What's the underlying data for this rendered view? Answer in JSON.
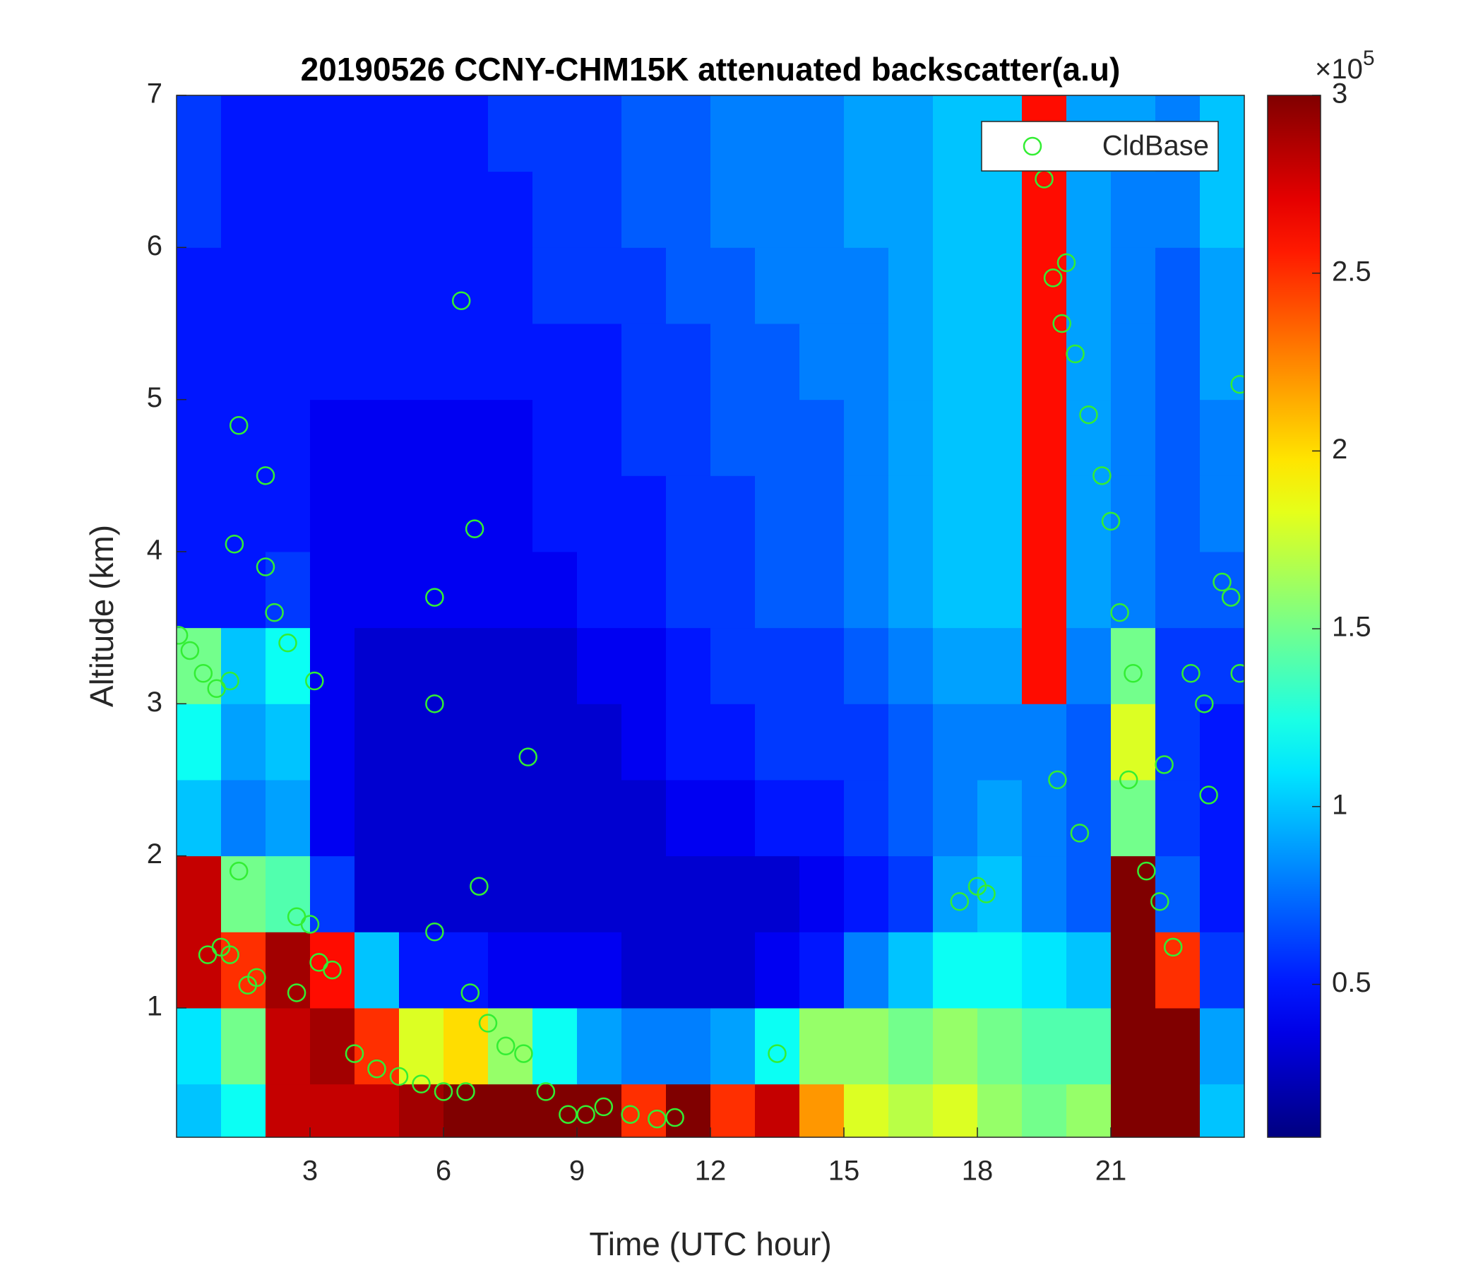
{
  "chart_data": {
    "type": "heatmap",
    "title": "20190526 CCNY-CHM15K attenuated backscatter(a.u)",
    "xlabel": "Time (UTC hour)",
    "ylabel": "Altitude (km)",
    "xlim": [
      0,
      24
    ],
    "xticks": [
      3,
      6,
      9,
      12,
      15,
      18,
      21
    ],
    "ylim": [
      0.15,
      7
    ],
    "yticks": [
      1,
      2,
      3,
      4,
      5,
      6,
      7
    ],
    "colormap": "jet",
    "clim": [
      0.07,
      3
    ],
    "cticks": [
      0.5,
      1,
      1.5,
      2,
      2.5,
      3
    ],
    "cscale_base": "×10",
    "cscale_exponent": "5",
    "x_edges": [
      0,
      1,
      2,
      3,
      4,
      5,
      6,
      7,
      8,
      9,
      10,
      11,
      12,
      13,
      14,
      15,
      16,
      17,
      18,
      19,
      20,
      21,
      22,
      23,
      24
    ],
    "y_edges": [
      0.15,
      0.5,
      1,
      1.5,
      2,
      2.5,
      3,
      3.5,
      4,
      4.5,
      5,
      5.5,
      6,
      6.5,
      7
    ],
    "z": [
      [
        1.0,
        1.2,
        2.8,
        2.8,
        2.8,
        2.9,
        3,
        3,
        3,
        3,
        2.5,
        3,
        2.5,
        2.8,
        2.2,
        1.8,
        1.7,
        1.8,
        1.6,
        1.5,
        1.6,
        3,
        3,
        1.0
      ],
      [
        1.1,
        1.5,
        2.8,
        2.9,
        2.5,
        1.8,
        2.0,
        1.6,
        1.2,
        0.9,
        0.8,
        0.8,
        0.9,
        1.2,
        1.6,
        1.6,
        1.5,
        1.6,
        1.5,
        1.4,
        1.4,
        3,
        3,
        0.9
      ],
      [
        2.8,
        2.5,
        2.9,
        2.6,
        1.0,
        0.5,
        0.5,
        0.4,
        0.4,
        0.4,
        0.3,
        0.3,
        0.3,
        0.4,
        0.5,
        0.8,
        1.0,
        1.2,
        1.2,
        1.1,
        1.0,
        3,
        2.5,
        0.6
      ],
      [
        2.8,
        1.5,
        1.4,
        0.6,
        0.3,
        0.3,
        0.3,
        0.3,
        0.3,
        0.3,
        0.3,
        0.3,
        0.3,
        0.3,
        0.4,
        0.5,
        0.6,
        0.9,
        1.0,
        0.8,
        0.7,
        3,
        0.7,
        0.5
      ],
      [
        1.0,
        0.8,
        0.9,
        0.4,
        0.3,
        0.3,
        0.3,
        0.3,
        0.3,
        0.3,
        0.3,
        0.4,
        0.4,
        0.5,
        0.5,
        0.6,
        0.7,
        0.8,
        0.9,
        0.8,
        0.7,
        1.5,
        0.6,
        0.5
      ],
      [
        1.2,
        0.9,
        1.0,
        0.4,
        0.3,
        0.3,
        0.3,
        0.3,
        0.3,
        0.3,
        0.4,
        0.5,
        0.5,
        0.6,
        0.6,
        0.6,
        0.7,
        0.8,
        0.8,
        0.8,
        0.7,
        1.8,
        0.6,
        0.5
      ],
      [
        1.5,
        1.0,
        1.2,
        0.4,
        0.3,
        0.3,
        0.3,
        0.3,
        0.3,
        0.4,
        0.4,
        0.5,
        0.6,
        0.6,
        0.6,
        0.7,
        0.8,
        0.9,
        0.9,
        2.6,
        0.8,
        1.5,
        0.6,
        0.6
      ],
      [
        0.5,
        0.5,
        0.6,
        0.4,
        0.4,
        0.4,
        0.4,
        0.4,
        0.4,
        0.5,
        0.5,
        0.6,
        0.6,
        0.7,
        0.7,
        0.8,
        0.9,
        1.0,
        1.0,
        2.6,
        0.9,
        0.8,
        0.7,
        0.7
      ],
      [
        0.5,
        0.5,
        0.5,
        0.4,
        0.4,
        0.4,
        0.4,
        0.4,
        0.5,
        0.5,
        0.5,
        0.6,
        0.6,
        0.7,
        0.7,
        0.8,
        0.9,
        1.0,
        1.0,
        2.6,
        0.9,
        0.8,
        0.7,
        0.8
      ],
      [
        0.5,
        0.5,
        0.5,
        0.4,
        0.4,
        0.4,
        0.4,
        0.4,
        0.5,
        0.5,
        0.6,
        0.6,
        0.7,
        0.7,
        0.7,
        0.8,
        0.9,
        1.0,
        1.0,
        2.6,
        0.9,
        0.8,
        0.7,
        0.8
      ],
      [
        0.5,
        0.5,
        0.5,
        0.5,
        0.5,
        0.5,
        0.5,
        0.5,
        0.5,
        0.5,
        0.6,
        0.6,
        0.7,
        0.7,
        0.8,
        0.8,
        0.9,
        1.0,
        1.0,
        2.6,
        0.9,
        0.8,
        0.7,
        0.9
      ],
      [
        0.5,
        0.5,
        0.5,
        0.5,
        0.5,
        0.5,
        0.5,
        0.5,
        0.6,
        0.6,
        0.6,
        0.7,
        0.7,
        0.8,
        0.8,
        0.8,
        0.9,
        1.0,
        1.0,
        2.6,
        0.9,
        0.8,
        0.7,
        0.9
      ],
      [
        0.6,
        0.5,
        0.5,
        0.5,
        0.5,
        0.5,
        0.5,
        0.5,
        0.6,
        0.6,
        0.7,
        0.7,
        0.8,
        0.8,
        0.8,
        0.9,
        0.9,
        1.0,
        1.0,
        2.6,
        0.9,
        0.8,
        0.8,
        1.0
      ],
      [
        0.6,
        0.5,
        0.5,
        0.5,
        0.5,
        0.5,
        0.5,
        0.6,
        0.6,
        0.6,
        0.7,
        0.7,
        0.8,
        0.8,
        0.8,
        0.9,
        0.9,
        1.0,
        1.0,
        2.6,
        0.9,
        0.9,
        0.8,
        1.0
      ]
    ],
    "legend": "upper right",
    "series": [
      {
        "name": "CldBase",
        "color": "#33ee33",
        "x": [
          0.05,
          0.3,
          0.6,
          0.9,
          1.2,
          0.7,
          1.0,
          1.2,
          1.4,
          1.6,
          1.8,
          1.4,
          1.3,
          2.0,
          2.0,
          2.2,
          2.5,
          2.7,
          3.0,
          2.7,
          3.1,
          3.2,
          3.5,
          4.0,
          4.5,
          5.0,
          5.5,
          6.0,
          6.5,
          5.8,
          5.8,
          5.8,
          6.4,
          6.7,
          6.8,
          6.6,
          7.0,
          7.4,
          7.8,
          7.9,
          8.3,
          8.8,
          9.2,
          9.6,
          10.2,
          10.8,
          11.2,
          13.5,
          17.6,
          18.0,
          18.2,
          19.5,
          19.7,
          19.9,
          20.0,
          20.2,
          20.5,
          20.8,
          21.0,
          21.2,
          21.5,
          21.4,
          21.8,
          22.1,
          22.2,
          22.4,
          22.8,
          23.1,
          23.2,
          23.5,
          23.7,
          23.9,
          23.9,
          19.8,
          20.3
        ],
        "values": [
          3.45,
          3.35,
          3.2,
          3.1,
          3.15,
          1.35,
          1.4,
          1.35,
          1.9,
          1.15,
          1.2,
          4.83,
          4.05,
          4.5,
          3.9,
          3.6,
          3.4,
          1.6,
          1.55,
          1.1,
          3.15,
          1.3,
          1.25,
          0.7,
          0.6,
          0.55,
          0.5,
          0.45,
          0.45,
          3.7,
          3.0,
          1.5,
          5.65,
          4.15,
          1.8,
          1.1,
          0.9,
          0.75,
          0.7,
          2.65,
          0.45,
          0.3,
          0.3,
          0.35,
          0.3,
          0.27,
          0.28,
          0.7,
          1.7,
          1.8,
          1.75,
          6.45,
          5.8,
          5.5,
          5.9,
          5.3,
          4.9,
          4.5,
          4.2,
          3.6,
          3.2,
          2.5,
          1.9,
          1.7,
          2.6,
          1.4,
          3.2,
          3.0,
          2.4,
          3.8,
          3.7,
          3.2,
          5.1,
          2.5,
          2.15
        ]
      }
    ]
  }
}
